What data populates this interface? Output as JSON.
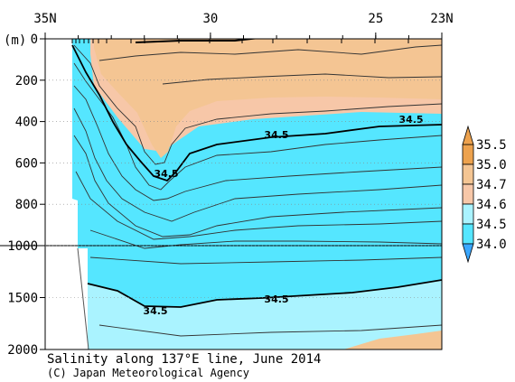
{
  "chart_data": {
    "type": "area",
    "title": "Salinity along 137°E line, June 2014",
    "credit": "(C) Japan Meteorological Agency",
    "x_axis": {
      "ticks": [
        {
          "label": "35N",
          "value": 35
        },
        {
          "label": "30",
          "value": 30
        },
        {
          "label": "25",
          "value": 25
        },
        {
          "label": "23N",
          "value": 23
        }
      ],
      "range": [
        35,
        23
      ]
    },
    "y_axis": {
      "unit_label": "(m)",
      "ticks": [
        "0",
        "200",
        "400",
        "600",
        "800",
        "1000",
        "1500",
        "2000"
      ],
      "upper_range": [
        0,
        1000
      ],
      "lower_range": [
        1000,
        2000
      ]
    },
    "colorbar": {
      "levels": [
        "34.0",
        "34.5",
        "34.6",
        "34.7",
        "35.0",
        "35.5"
      ],
      "colors": [
        "#55e6ff",
        "#55e6ff",
        "#aaf3ff",
        "#f7c7a8",
        "#f4c593",
        "#eda24e"
      ]
    },
    "contour_labels": [
      "34.5",
      "34.5",
      "34.5",
      "34.5",
      "34.5"
    ],
    "colors": {
      "fresh": "#55e6ff",
      "mid": "#aaf3ff",
      "salty": "#f4c593",
      "salty_light": "#f7c7a8"
    }
  }
}
